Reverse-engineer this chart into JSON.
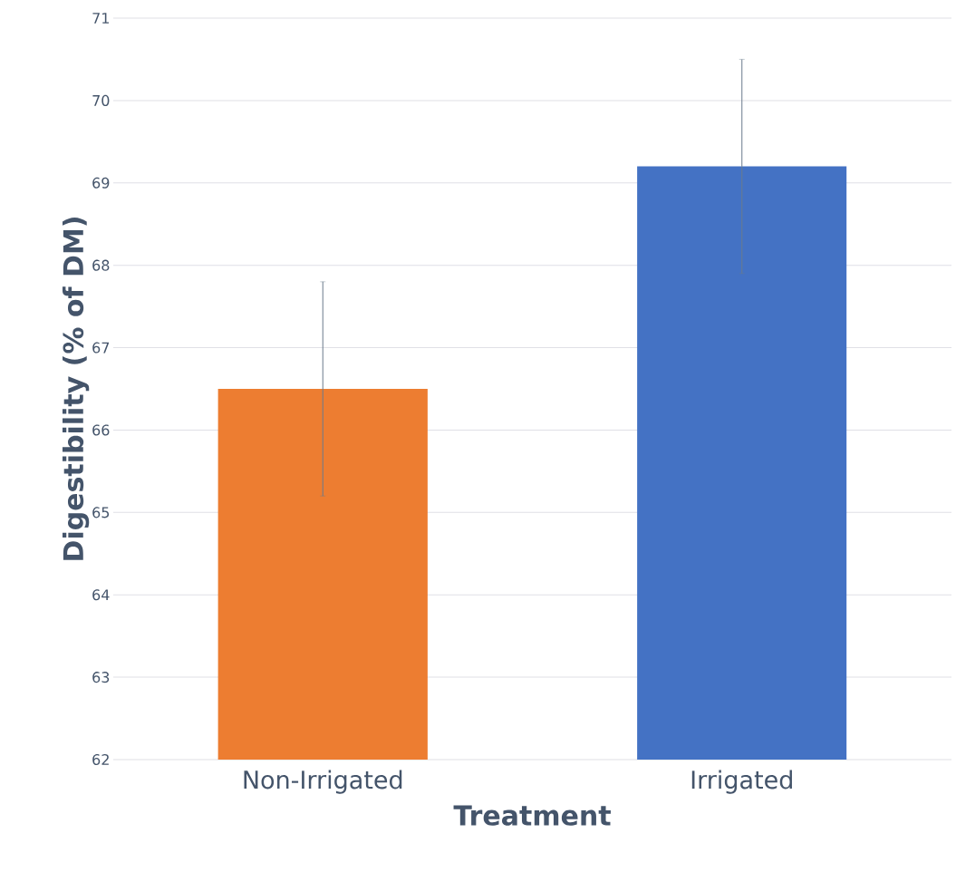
{
  "chart_data": {
    "type": "bar",
    "xlabel": "Treatment",
    "ylabel": "Digestibility (% of DM)",
    "categories": [
      "Non-Irrigated",
      "Irrigated"
    ],
    "values": [
      66.5,
      69.2
    ],
    "colors": [
      "#ed7d31",
      "#4472c4"
    ],
    "errors": [
      1.3,
      1.3
    ],
    "ylim": [
      62,
      71
    ],
    "yticks": [
      62,
      63,
      64,
      65,
      66,
      67,
      68,
      69,
      70,
      71
    ],
    "grid": "y"
  }
}
